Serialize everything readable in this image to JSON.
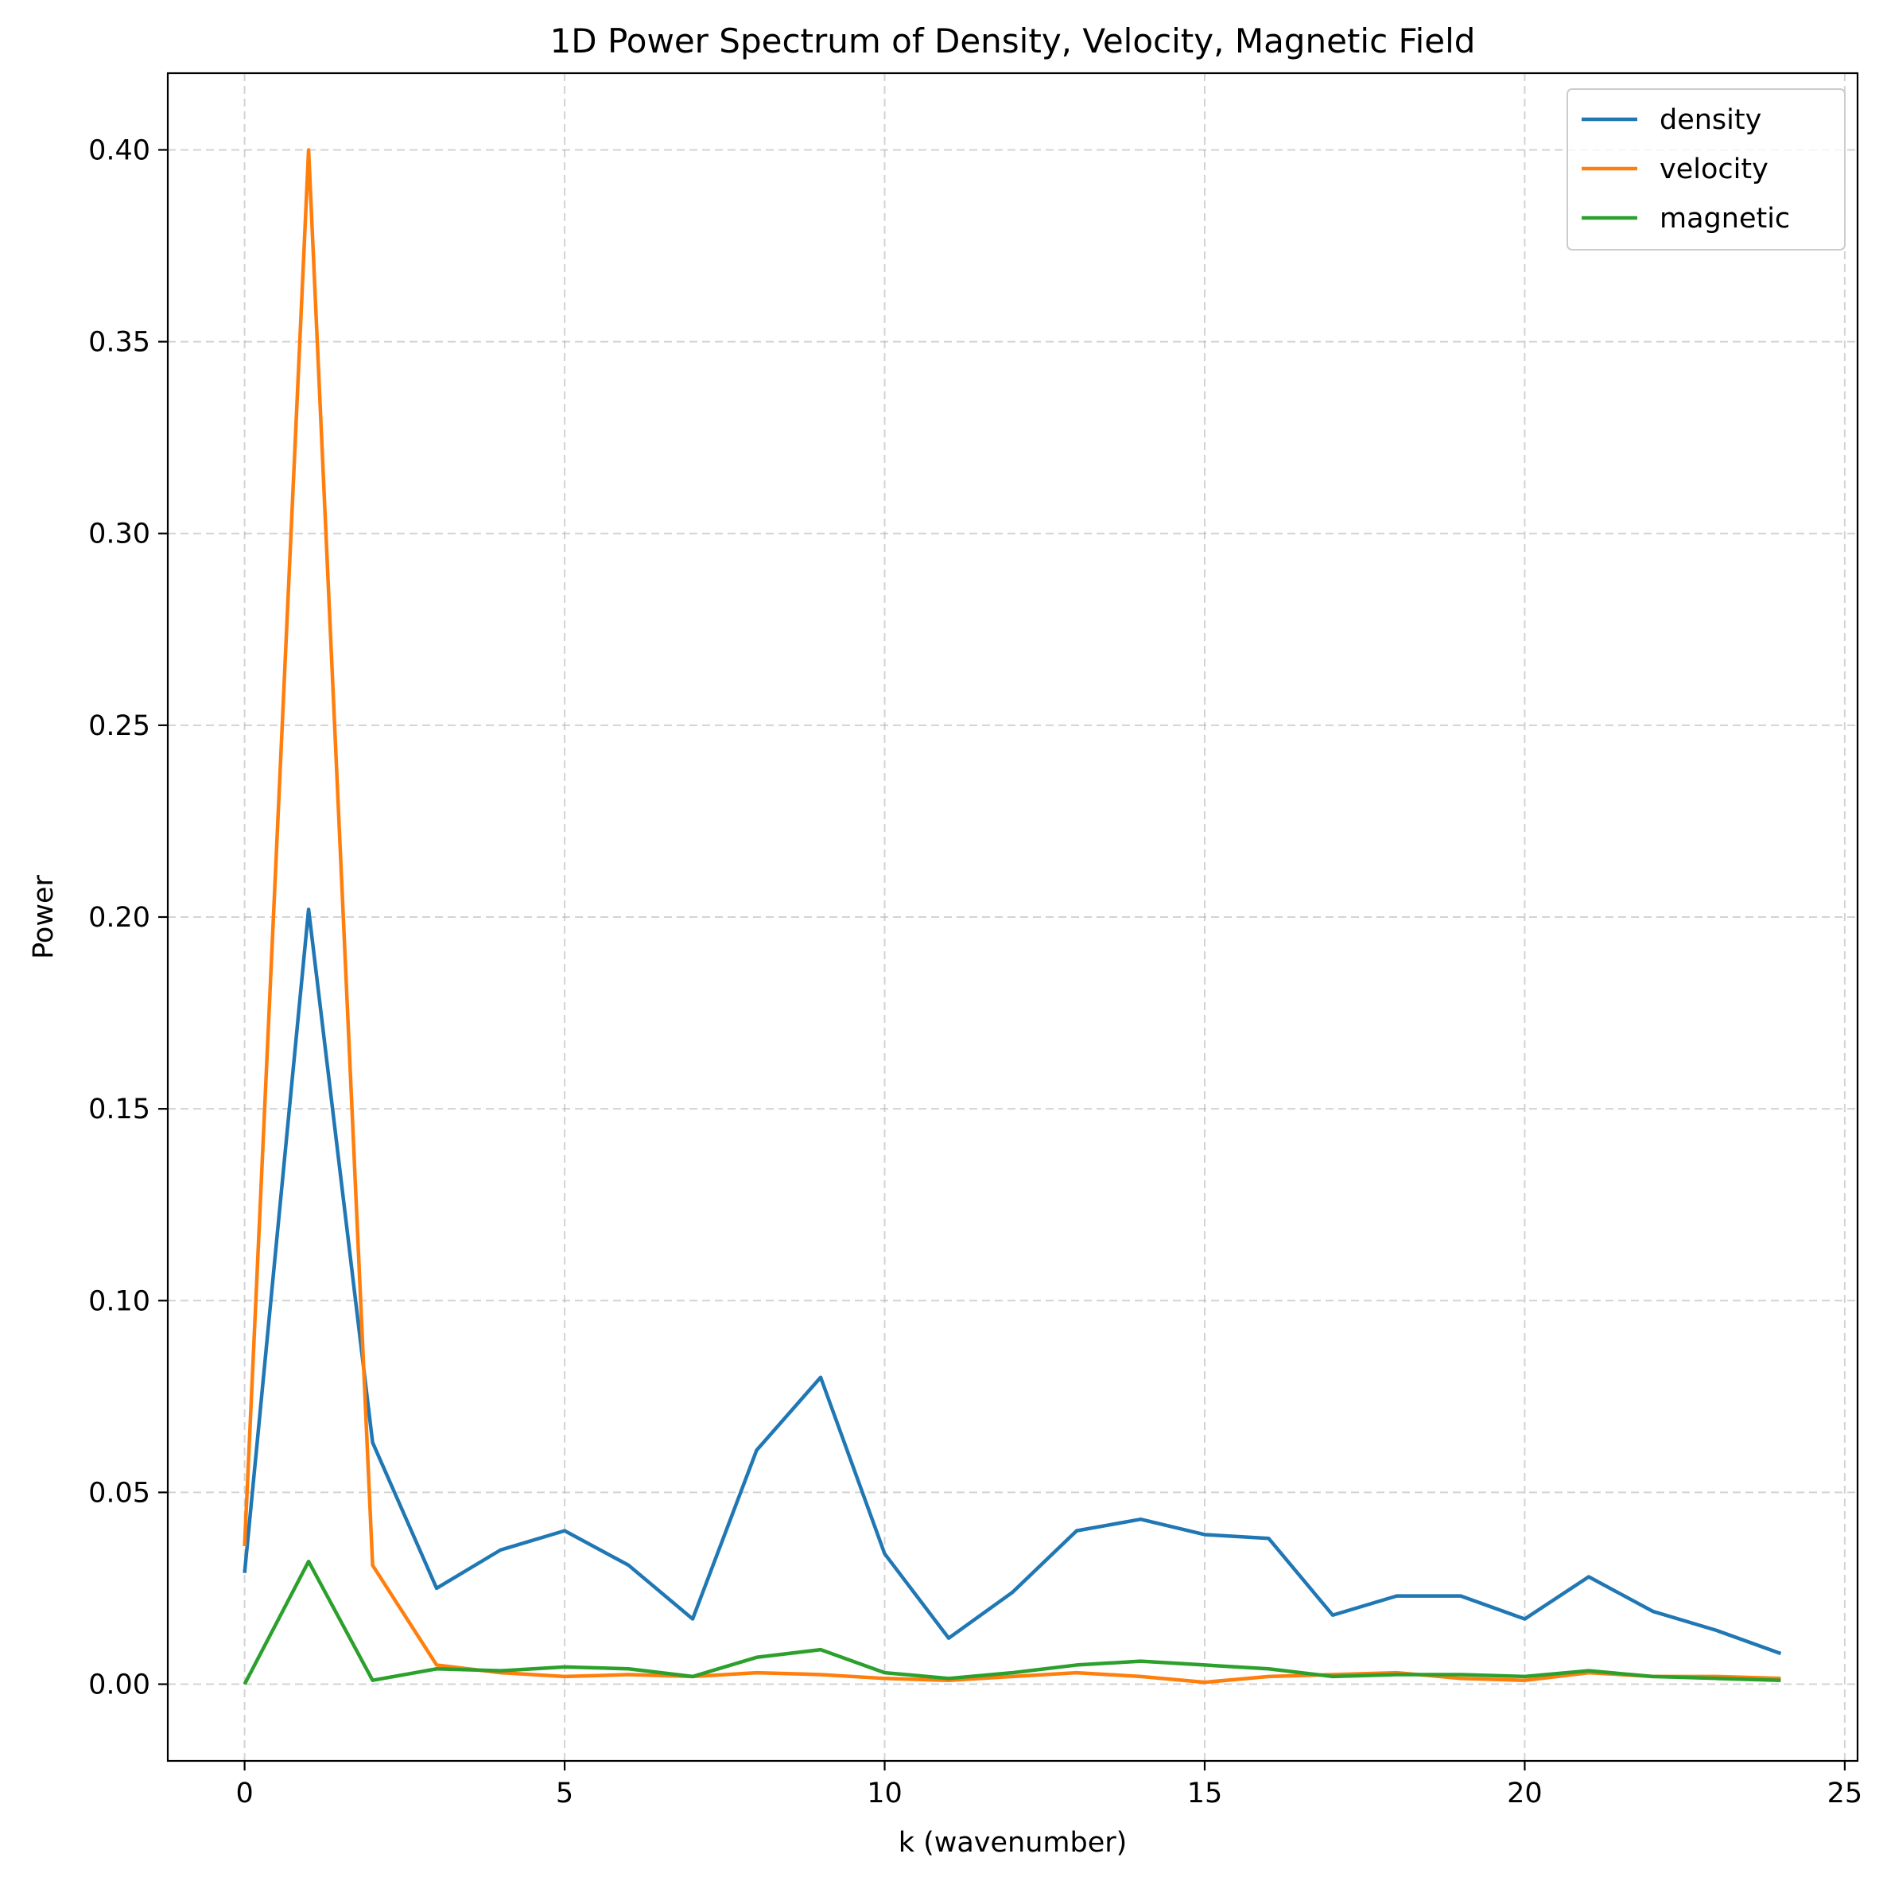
{
  "chart_data": {
    "type": "line",
    "title": "1D Power Spectrum of Density, Velocity, Magnetic Field",
    "xlabel": "k (wavenumber)",
    "ylabel": "Power",
    "xlim": [
      -1.2,
      25.2
    ],
    "ylim": [
      -0.02,
      0.42
    ],
    "xticks": [
      0,
      5,
      10,
      15,
      20,
      25
    ],
    "xtick_labels": [
      "0",
      "5",
      "10",
      "15",
      "20",
      "25"
    ],
    "yticks": [
      0.0,
      0.05,
      0.1,
      0.15,
      0.2,
      0.25,
      0.3,
      0.35,
      0.4
    ],
    "ytick_labels": [
      "0.00",
      "0.05",
      "0.10",
      "0.15",
      "0.20",
      "0.25",
      "0.30",
      "0.35",
      "0.40"
    ],
    "grid": true,
    "legend_position": "top-right",
    "x": [
      0,
      1,
      2,
      3,
      4,
      5,
      6,
      7,
      8,
      9,
      10,
      11,
      12,
      13,
      14,
      15,
      16,
      17,
      18,
      19,
      20,
      21,
      22,
      23,
      24
    ],
    "series": [
      {
        "name": "density",
        "color": "#1f77b4",
        "values": [
          0.029,
          0.202,
          0.063,
          0.025,
          0.035,
          0.04,
          0.031,
          0.017,
          0.061,
          0.08,
          0.034,
          0.012,
          0.024,
          0.04,
          0.043,
          0.039,
          0.038,
          0.018,
          0.023,
          0.023,
          0.017,
          0.028,
          0.019,
          0.014,
          0.008
        ]
      },
      {
        "name": "velocity",
        "color": "#ff7f0e",
        "values": [
          0.036,
          0.4,
          0.031,
          0.005,
          0.003,
          0.002,
          0.0025,
          0.002,
          0.003,
          0.0025,
          0.0015,
          0.001,
          0.002,
          0.003,
          0.002,
          0.0005,
          0.002,
          0.0025,
          0.003,
          0.0015,
          0.001,
          0.003,
          0.002,
          0.002,
          0.0015
        ]
      },
      {
        "name": "magnetic",
        "color": "#2ca02c",
        "values": [
          0.0,
          0.032,
          0.001,
          0.004,
          0.0035,
          0.0045,
          0.004,
          0.002,
          0.007,
          0.009,
          0.003,
          0.0015,
          0.003,
          0.005,
          0.006,
          0.005,
          0.004,
          0.002,
          0.0025,
          0.0025,
          0.002,
          0.0035,
          0.002,
          0.0015,
          0.001
        ]
      }
    ]
  }
}
